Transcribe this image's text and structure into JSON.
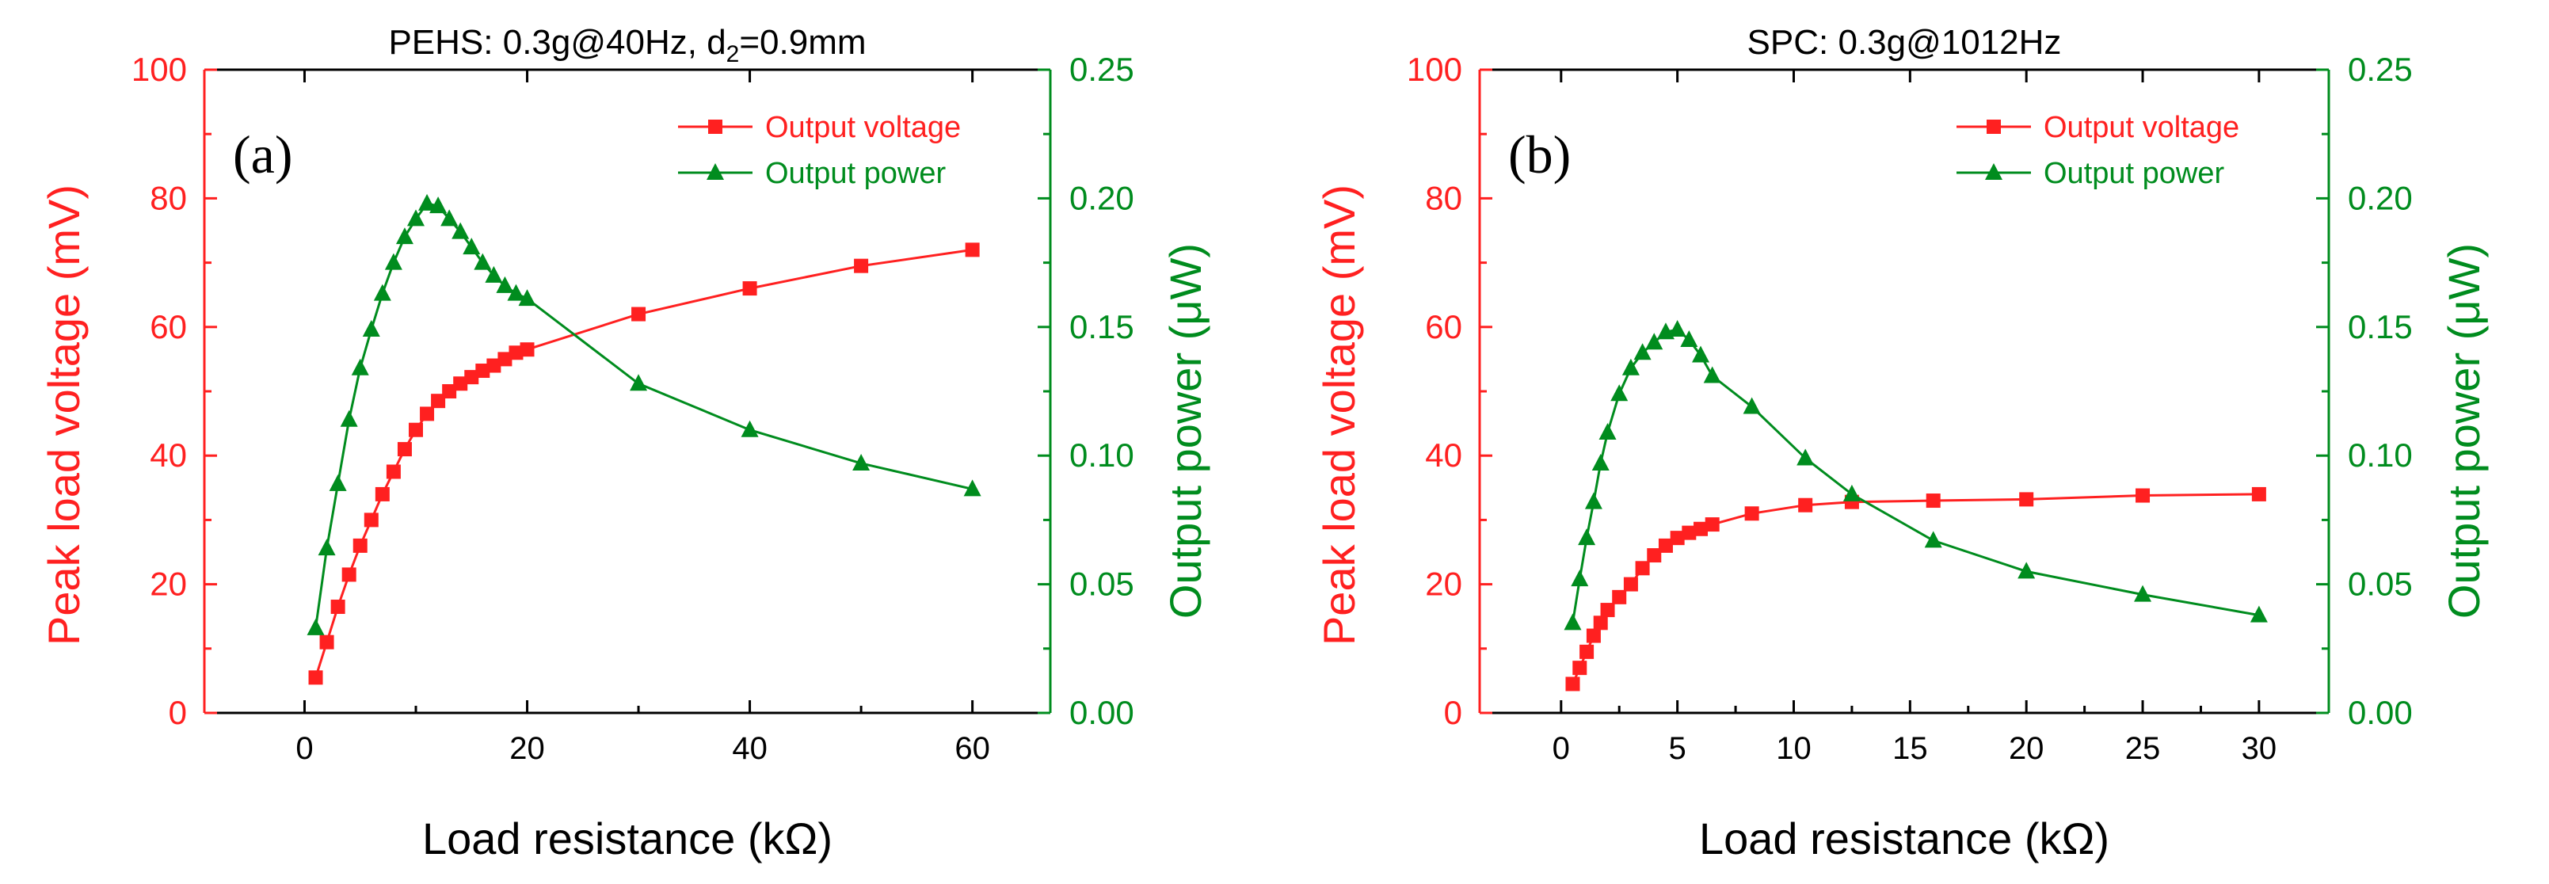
{
  "colors": {
    "voltage": "#ff2020",
    "power": "#008c1e",
    "axis": "#000000"
  },
  "chart_data": [
    {
      "type": "line",
      "panel_label": "(a)",
      "title_main": "PEHS: 0.3g@40Hz, d",
      "title_sub": "2",
      "title_tail": "=0.9mm",
      "xlabel": "Load resistance (kΩ)",
      "ylabel_left": "Peak load voltage (mV)",
      "ylabel_right": "Output power (μW)",
      "xlim": [
        -9,
        67
      ],
      "ylim_left": [
        0,
        100
      ],
      "ylim_right": [
        0,
        0.25
      ],
      "xticks": [
        0,
        20,
        40,
        60
      ],
      "yticks_left": [
        0,
        20,
        40,
        60,
        80,
        100
      ],
      "yticks_right": [
        0.0,
        0.05,
        0.1,
        0.15,
        0.2,
        0.25
      ],
      "ytick_labels_right": [
        "0.00",
        "0.05",
        "0.10",
        "0.15",
        "0.20",
        "0.25"
      ],
      "legend_position": "top-right",
      "series": [
        {
          "name": "Output voltage",
          "axis": "left",
          "marker": "square",
          "x": [
            1,
            2,
            3,
            4,
            5,
            6,
            7,
            8,
            9,
            10,
            11,
            12,
            13,
            14,
            15,
            16,
            17,
            18,
            19,
            20,
            30,
            40,
            50,
            60
          ],
          "y": [
            5.5,
            11,
            16.5,
            21.5,
            26,
            30,
            34,
            37.5,
            41,
            44,
            46.5,
            48.5,
            50,
            51.2,
            52.2,
            53.2,
            54,
            55,
            56,
            56.5,
            62,
            66,
            69.5,
            72
          ]
        },
        {
          "name": "Output power",
          "axis": "right",
          "marker": "triangle",
          "x": [
            1,
            2,
            3,
            4,
            5,
            6,
            7,
            8,
            9,
            10,
            11,
            12,
            13,
            14,
            15,
            16,
            17,
            18,
            19,
            20,
            30,
            40,
            50,
            60
          ],
          "y": [
            0.033,
            0.064,
            0.089,
            0.114,
            0.134,
            0.149,
            0.163,
            0.175,
            0.185,
            0.192,
            0.198,
            0.197,
            0.192,
            0.187,
            0.181,
            0.175,
            0.17,
            0.166,
            0.163,
            0.161,
            0.128,
            0.11,
            0.097,
            0.087
          ]
        }
      ]
    },
    {
      "type": "line",
      "panel_label": "(b)",
      "title_main": "SPC: 0.3g@1012Hz",
      "title_sub": "",
      "title_tail": "",
      "xlabel": "Load resistance (kΩ)",
      "ylabel_left": "Peak load voltage (mV)",
      "ylabel_right": "Output power (μW)",
      "xlim": [
        -3.5,
        33
      ],
      "ylim_left": [
        0,
        100
      ],
      "ylim_right": [
        0,
        0.25
      ],
      "xticks": [
        0,
        5,
        10,
        15,
        20,
        25,
        30
      ],
      "yticks_left": [
        0,
        20,
        40,
        60,
        80,
        100
      ],
      "yticks_right": [
        0.0,
        0.05,
        0.1,
        0.15,
        0.2,
        0.25
      ],
      "ytick_labels_right": [
        "0.00",
        "0.05",
        "0.10",
        "0.15",
        "0.20",
        "0.25"
      ],
      "legend_position": "top-right",
      "series": [
        {
          "name": "Output voltage",
          "axis": "left",
          "marker": "square",
          "x": [
            0.5,
            0.8,
            1.1,
            1.4,
            1.7,
            2.0,
            2.5,
            3.0,
            3.5,
            4.0,
            4.5,
            5.0,
            5.5,
            6.0,
            6.5,
            8.2,
            10.5,
            12.5,
            16,
            20,
            25,
            30
          ],
          "y": [
            4.5,
            7,
            9.5,
            12,
            14,
            16,
            18,
            20,
            22.5,
            24.5,
            26,
            27.2,
            28,
            28.6,
            29.3,
            31,
            32.3,
            32.8,
            33,
            33.2,
            33.8,
            34
          ]
        },
        {
          "name": "Output power",
          "axis": "right",
          "marker": "triangle",
          "x": [
            0.5,
            0.8,
            1.1,
            1.4,
            1.7,
            2.0,
            2.5,
            3.0,
            3.5,
            4.0,
            4.5,
            5.0,
            5.5,
            6.0,
            6.5,
            8.2,
            10.5,
            12.5,
            16,
            20,
            25,
            30
          ],
          "y": [
            0.035,
            0.052,
            0.068,
            0.082,
            0.097,
            0.109,
            0.124,
            0.134,
            0.14,
            0.144,
            0.148,
            0.149,
            0.145,
            0.139,
            0.131,
            0.119,
            0.099,
            0.085,
            0.067,
            0.055,
            0.046,
            0.038
          ]
        }
      ]
    }
  ]
}
